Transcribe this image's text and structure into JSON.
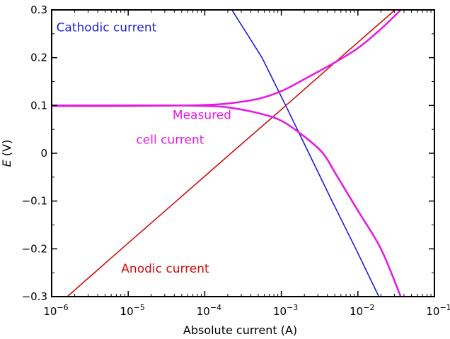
{
  "chart_data": {
    "type": "line",
    "title": "",
    "xlabel": "Absolute current (A)",
    "ylabel_var": "E",
    "ylabel_unit": " (V)",
    "xscale": "log",
    "xlim": [
      1e-06,
      0.1
    ],
    "ylim": [
      -0.3,
      0.3
    ],
    "grid": false,
    "legend": "none",
    "x_ticks": [
      {
        "base": "10",
        "exp": "−6",
        "value": 1e-06
      },
      {
        "base": "10",
        "exp": "−5",
        "value": 1e-05
      },
      {
        "base": "10",
        "exp": "−4",
        "value": 0.0001
      },
      {
        "base": "10",
        "exp": "−3",
        "value": 0.001
      },
      {
        "base": "10",
        "exp": "−2",
        "value": 0.01
      },
      {
        "base": "10",
        "exp": "−1",
        "value": 0.1
      }
    ],
    "y_ticks": [
      {
        "label": "0.3",
        "value": 0.3
      },
      {
        "label": "0.2",
        "value": 0.2
      },
      {
        "label": "0.1",
        "value": 0.1
      },
      {
        "label": "0",
        "value": 0
      },
      {
        "label": "−0.1",
        "value": -0.1
      },
      {
        "label": "−0.2",
        "value": -0.2
      },
      {
        "label": "−0.3",
        "value": -0.3
      }
    ],
    "series": [
      {
        "name": "Cathodic current",
        "color": "#1a1adc",
        "x": [
          0.000226,
          0.00056,
          0.00114,
          0.00229,
          0.0046,
          0.0094,
          0.0188,
          0.0363
        ],
        "y": [
          0.3,
          0.2,
          0.1,
          0.0,
          -0.1,
          -0.2,
          -0.3,
          -0.3
        ]
      },
      {
        "name": "Anodic current",
        "color": "#cc0e0e",
        "x": [
          1.6e-06,
          8.2e-06,
          4.26e-05,
          0.00022,
          0.00115,
          0.0059,
          0.0306,
          0.0363
        ],
        "y": [
          -0.3,
          -0.2,
          -0.1,
          0.0,
          0.1,
          0.2,
          0.3,
          0.3
        ]
      },
      {
        "name": "Measured cell current",
        "color": "#e31ce3",
        "x": [
          1e-06,
          1e-05,
          5e-05,
          0.0001,
          0.0002,
          0.0005,
          0.001,
          0.002,
          0.0035,
          0.005,
          0.01,
          0.02,
          0.0363
        ],
        "y": [
          0.1,
          0.1,
          0.1,
          0.099,
          0.096,
          0.084,
          0.068,
          0.035,
          0.0,
          -0.04,
          -0.12,
          -0.2,
          -0.3
        ]
      },
      {
        "name": "Measured cell current",
        "color": "#e31ce3",
        "x": [
          1e-06,
          1e-05,
          5e-05,
          0.0001,
          0.0002,
          0.0005,
          0.001,
          0.002,
          0.005,
          0.01,
          0.02,
          0.0363
        ],
        "y": [
          0.099,
          0.099,
          0.1,
          0.101,
          0.104,
          0.114,
          0.13,
          0.155,
          0.19,
          0.22,
          0.26,
          0.3
        ]
      }
    ],
    "annotations": {
      "cathodic": {
        "text": "Cathodic current",
        "color": "#1a1adc",
        "x": 1.15e-06,
        "y": 0.255
      },
      "measured_1": {
        "text": "Measured",
        "color": "#e31ce3",
        "x": 3.8e-05,
        "y": 0.072
      },
      "measured_2": {
        "text": "cell current",
        "color": "#e31ce3",
        "x": 1.27e-05,
        "y": 0.02
      },
      "anodic": {
        "text": "Anodic current",
        "color": "#cc0e0e",
        "x": 8.1e-06,
        "y": -0.25
      }
    }
  }
}
